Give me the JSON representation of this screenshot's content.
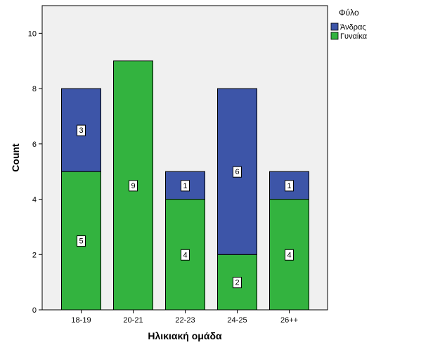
{
  "chart_data": {
    "type": "bar",
    "stacked": true,
    "categories": [
      "18-19",
      "20-21",
      "22-23",
      "24-25",
      "26++"
    ],
    "series": [
      {
        "name": "Γυναίκα",
        "values": [
          5,
          9,
          4,
          2,
          4
        ],
        "color": "#33b33f"
      },
      {
        "name": "Άνδρας",
        "values": [
          3,
          0,
          1,
          6,
          1
        ],
        "color": "#3d55a8"
      }
    ],
    "xlabel": "Ηλικιακή ομάδα",
    "ylabel": "Count",
    "ylim": [
      0,
      11
    ],
    "yticks": [
      0,
      2,
      4,
      6,
      8,
      10
    ],
    "legend": {
      "title": "Φύλο",
      "placement": "top-right",
      "order": [
        "Άνδρας",
        "Γυναίκα"
      ]
    },
    "grid": false,
    "plot_background": "#f0f0f0"
  }
}
